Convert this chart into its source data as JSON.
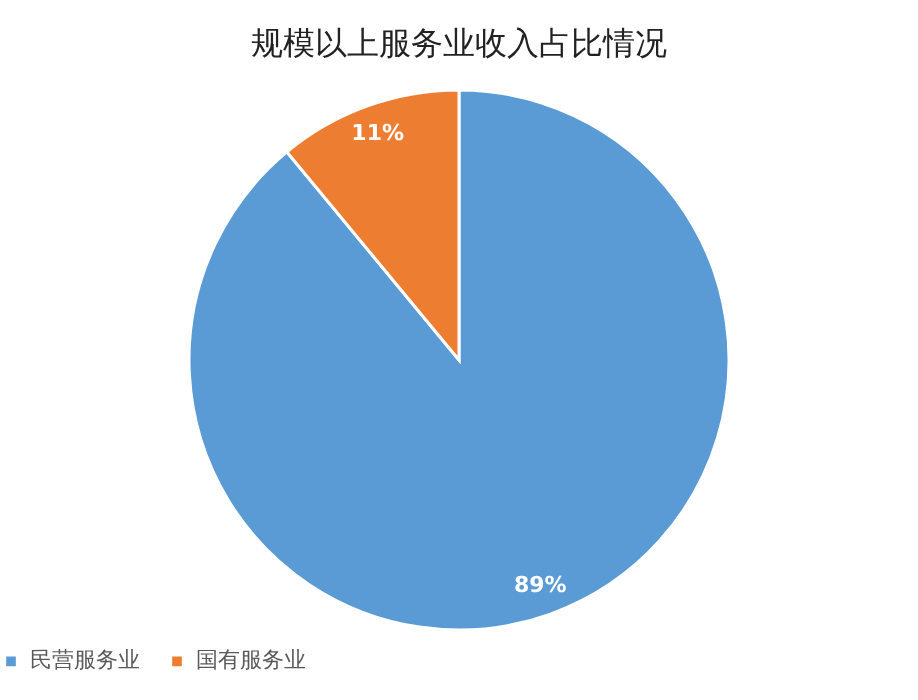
{
  "chart_data": {
    "type": "pie",
    "title": "规模以上服务业收入占比情况",
    "categories": [
      "民营服务业",
      "国有服务业"
    ],
    "values": [
      89,
      11
    ],
    "colors": [
      "#5b9bd5",
      "#ed7d31"
    ],
    "value_labels": [
      "89%",
      "11%"
    ],
    "legend": "bottom"
  }
}
